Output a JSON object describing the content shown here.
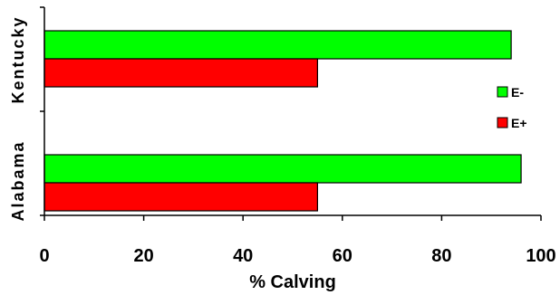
{
  "chart_data": {
    "type": "bar",
    "orientation": "horizontal",
    "categories": [
      "Kentucky",
      "Alabama"
    ],
    "series": [
      {
        "name": "E-",
        "color": "#00ff00",
        "values": [
          94,
          96
        ]
      },
      {
        "name": "E+",
        "color": "#ff0000",
        "values": [
          55,
          55
        ]
      }
    ],
    "xlabel": "% Calving",
    "ylabel": "",
    "xlim": [
      0,
      100
    ],
    "xticks": [
      0,
      20,
      40,
      60,
      80,
      100
    ],
    "grid": false,
    "legend_position": "right",
    "legend_order": [
      "E-",
      "E+"
    ]
  }
}
